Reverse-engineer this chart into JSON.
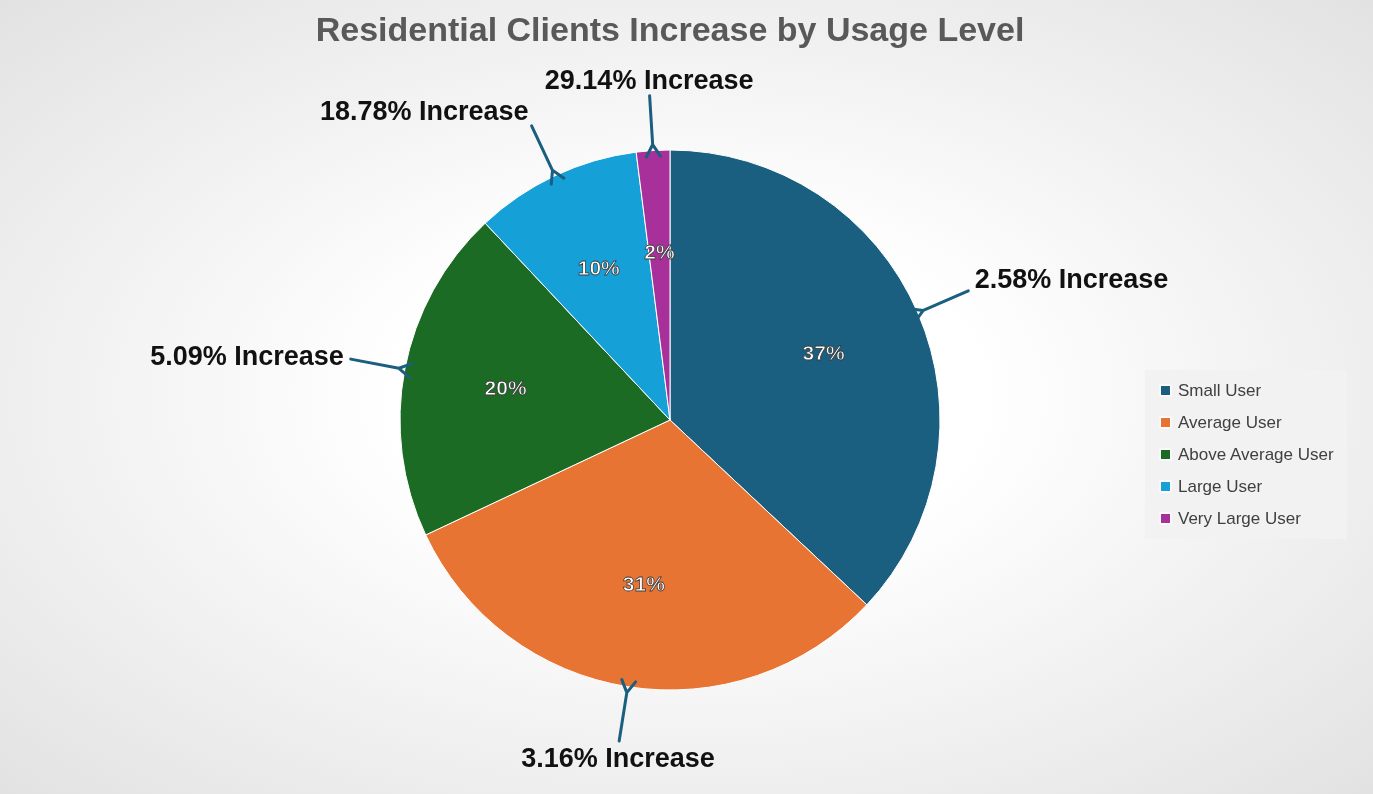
{
  "chart_data": {
    "type": "pie",
    "title": "Residential Clients Increase by Usage Level",
    "categories": [
      "Small User",
      "Average User",
      "Above Average User",
      "Large User",
      "Very Large User"
    ],
    "values": [
      37,
      31,
      20,
      10,
      2
    ],
    "colors": [
      "#1a5e80",
      "#e87433",
      "#1c6b24",
      "#15a0d8",
      "#a8309a"
    ],
    "value_labels": [
      "37%",
      "31%",
      "20%",
      "10%",
      "2%"
    ],
    "annotations": [
      "2.58% Increase",
      "3.16% Increase",
      "5.09% Increase",
      "18.78% Increase",
      "29.14% Increase"
    ],
    "legend": "right"
  }
}
